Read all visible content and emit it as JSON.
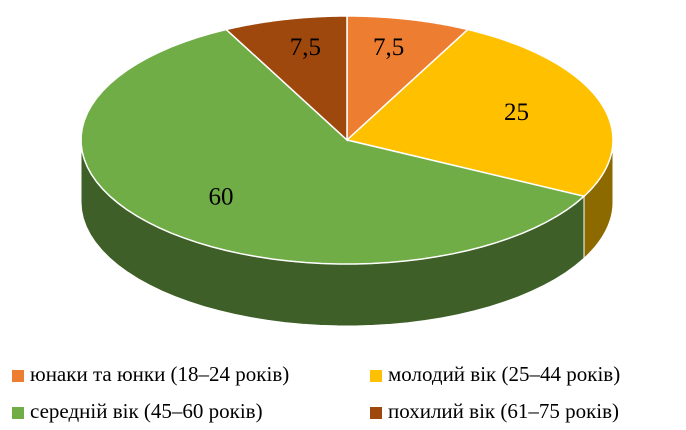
{
  "chart_data": {
    "type": "pie",
    "categories": [
      "юнаки та юнки (18–24 років)",
      "молодий вік (25–44 років)",
      "середній вік (45–60 років)",
      "похилий вік (61–75 років)"
    ],
    "values": [
      7.5,
      25,
      60,
      7.5
    ],
    "value_labels": [
      "7,5",
      "25",
      "60",
      "7,5"
    ],
    "colors": [
      "#ed7d31",
      "#ffc000",
      "#70ad47",
      "#9e480e"
    ]
  }
}
